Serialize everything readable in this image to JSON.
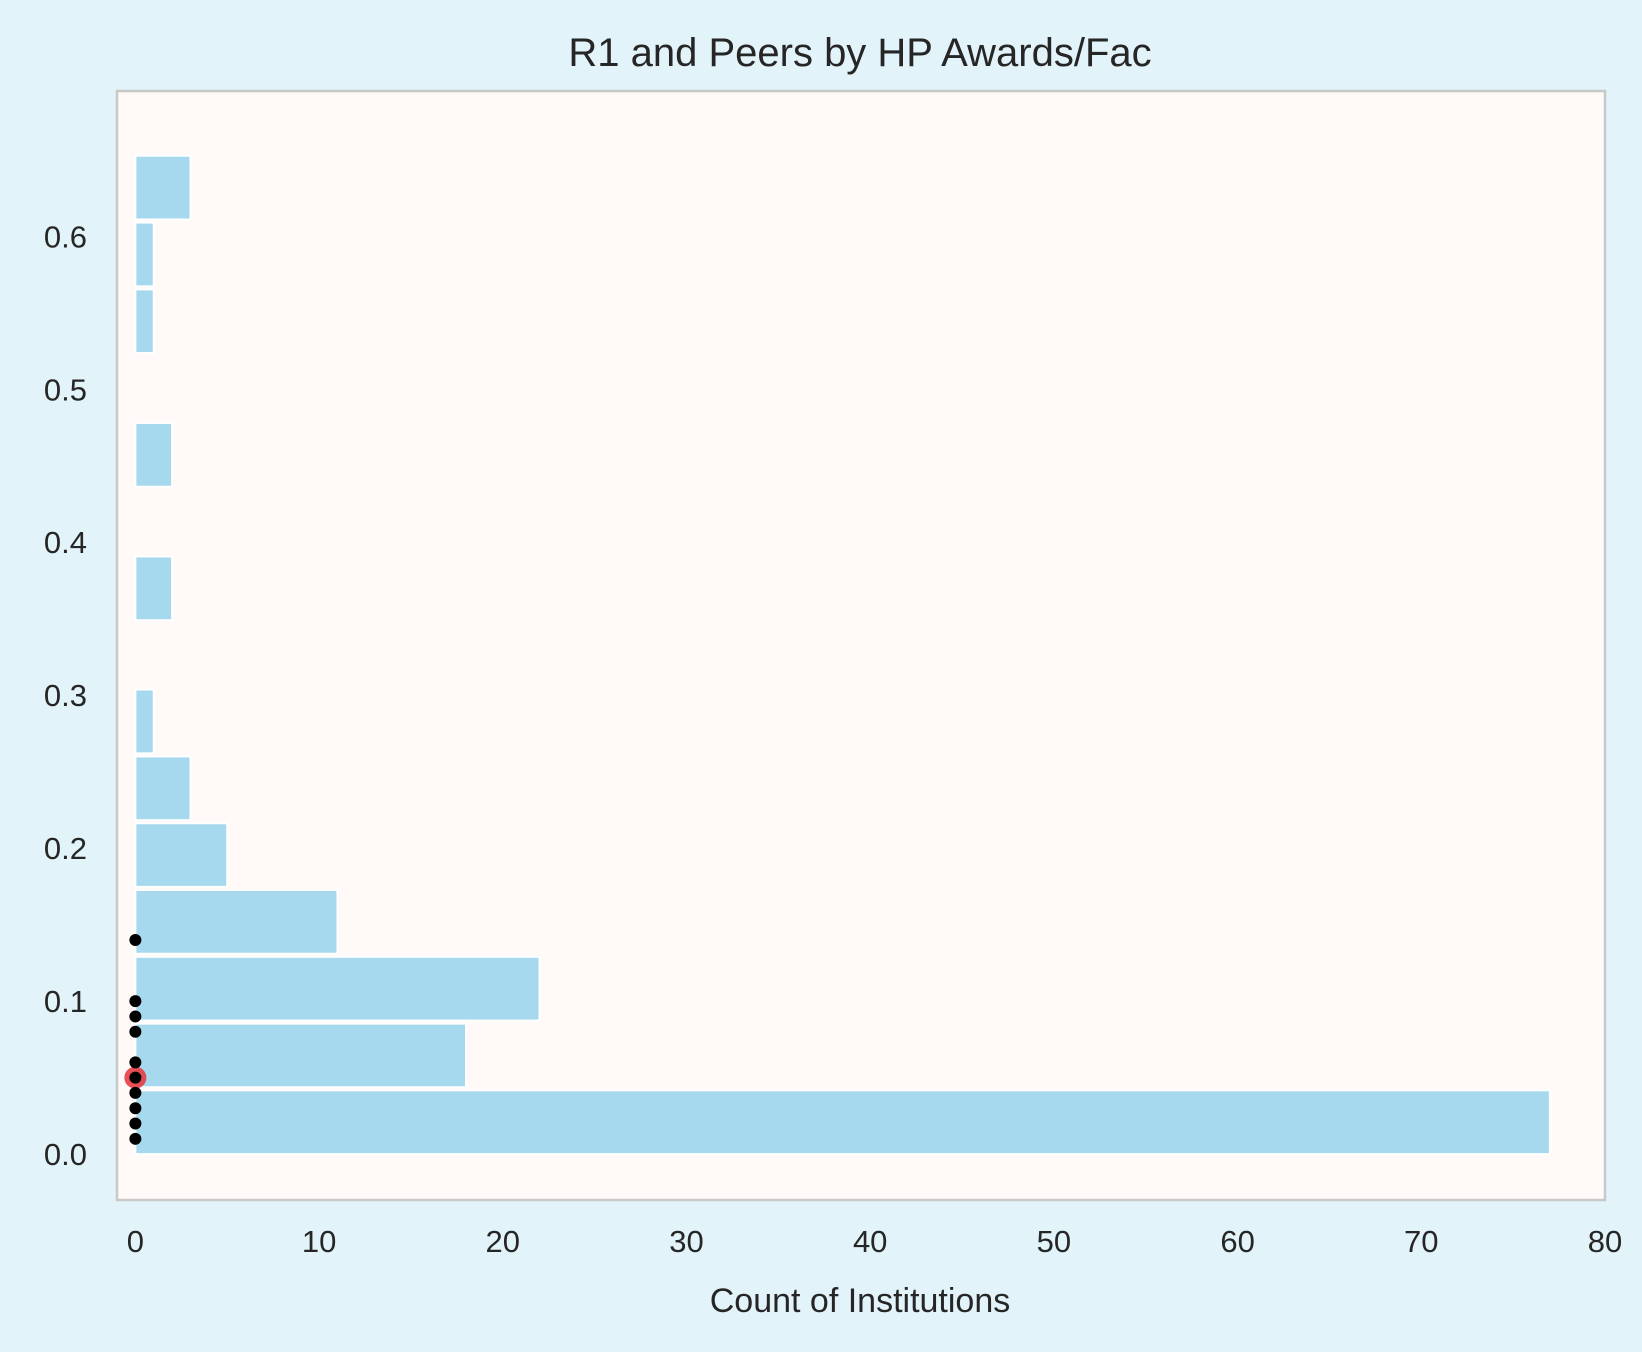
{
  "chart_data": {
    "type": "bar",
    "orientation": "horizontal",
    "title": "R1 and Peers by HP Awards/Fac",
    "xlabel": "Count of Institutions",
    "ylabel": "",
    "xlim": [
      -1,
      80
    ],
    "ylim": [
      -0.03,
      0.695
    ],
    "x_ticks": [
      0,
      10,
      20,
      30,
      40,
      50,
      60,
      70,
      80
    ],
    "y_ticks": [
      0.0,
      0.1,
      0.2,
      0.3,
      0.4,
      0.5,
      0.6
    ],
    "x_tick_labels": [
      "0",
      "10",
      "20",
      "30",
      "40",
      "50",
      "60",
      "70",
      "80"
    ],
    "y_tick_labels": [
      "0.0",
      "0.1",
      "0.2",
      "0.3",
      "0.4",
      "0.5",
      "0.6"
    ],
    "grid": false,
    "bins": [
      {
        "y0": 0.0,
        "y1": 0.0417,
        "count": 77
      },
      {
        "y0": 0.0437,
        "y1": 0.0853,
        "count": 18
      },
      {
        "y0": 0.0873,
        "y1": 0.129,
        "count": 22
      },
      {
        "y0": 0.131,
        "y1": 0.1727,
        "count": 11
      },
      {
        "y0": 0.1747,
        "y1": 0.2163,
        "count": 5
      },
      {
        "y0": 0.2183,
        "y1": 0.26,
        "count": 3
      },
      {
        "y0": 0.262,
        "y1": 0.3037,
        "count": 1
      },
      {
        "y0": 0.349,
        "y1": 0.3907,
        "count": 2
      },
      {
        "y0": 0.4363,
        "y1": 0.478,
        "count": 2
      },
      {
        "y0": 0.5237,
        "y1": 0.5653,
        "count": 1
      },
      {
        "y0": 0.5673,
        "y1": 0.609,
        "count": 1
      },
      {
        "y0": 0.611,
        "y1": 0.6527,
        "count": 3
      }
    ],
    "points": [
      {
        "x": 0,
        "y": 0.01
      },
      {
        "x": 0,
        "y": 0.02
      },
      {
        "x": 0,
        "y": 0.03
      },
      {
        "x": 0,
        "y": 0.04
      },
      {
        "x": 0,
        "y": 0.05
      },
      {
        "x": 0,
        "y": 0.06
      },
      {
        "x": 0,
        "y": 0.08
      },
      {
        "x": 0,
        "y": 0.09
      },
      {
        "x": 0,
        "y": 0.1
      },
      {
        "x": 0,
        "y": 0.14
      }
    ],
    "highlight_point": {
      "x": 0,
      "y": 0.05
    },
    "colors": {
      "bar": "#a6d9ee",
      "bar_edge": "#ffffff",
      "plot_bg": "#fff9f8",
      "figure_bg": "#e2f4f9",
      "frame": "#c8c8c8",
      "point": "#000000",
      "highlight": "#e8313a",
      "text": "#262626"
    }
  }
}
